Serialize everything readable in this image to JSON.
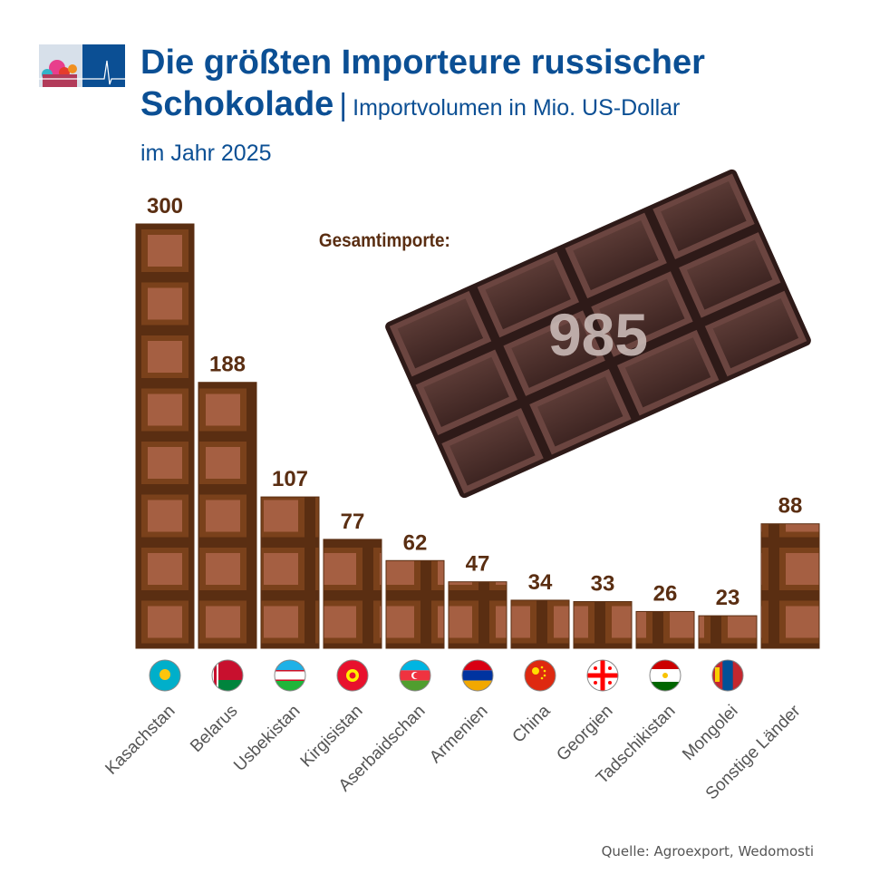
{
  "header": {
    "title_line1": "Die größten Importeure russischer",
    "title_line2": "Schokolade",
    "separator": "|",
    "subtitle": "Importvolumen in Mio. US-Dollar",
    "year": "im Jahr 2025"
  },
  "total": {
    "label": "Gesamtimporte:",
    "value": "985"
  },
  "source": "Quelle: Agroexport, Wedomosti",
  "colors": {
    "title": "#0b4f94",
    "bar_dark": "#5a2e12",
    "bar_mid": "#7a411b",
    "bar_light": "#a55f42",
    "value_label": "#5a2e12"
  },
  "chart_data": {
    "type": "bar",
    "title": "Die größten Importeure russischer Schokolade",
    "ylabel": "Importvolumen in Mio. US-Dollar",
    "categories": [
      "Kasachstan",
      "Belarus",
      "Usbekistan",
      "Kirgisistan",
      "Aserbaidschan",
      "Armenien",
      "China",
      "Georgien",
      "Tadschikistan",
      "Mongolei",
      "Sonstige Länder"
    ],
    "values": [
      300,
      188,
      107,
      77,
      62,
      47,
      34,
      33,
      26,
      23,
      88
    ],
    "value_labels": [
      "300",
      "188",
      "107",
      "77",
      "62",
      "47",
      "34",
      "33",
      "26",
      "23",
      "88"
    ],
    "flags": [
      "kazakhstan-flag",
      "belarus-flag",
      "uzbekistan-flag",
      "kyrgyzstan-flag",
      "azerbaijan-flag",
      "armenia-flag",
      "china-flag",
      "georgia-flag",
      "tajikistan-flag",
      "mongolia-flag",
      ""
    ],
    "ylim": [
      0,
      300
    ],
    "grid": false
  }
}
